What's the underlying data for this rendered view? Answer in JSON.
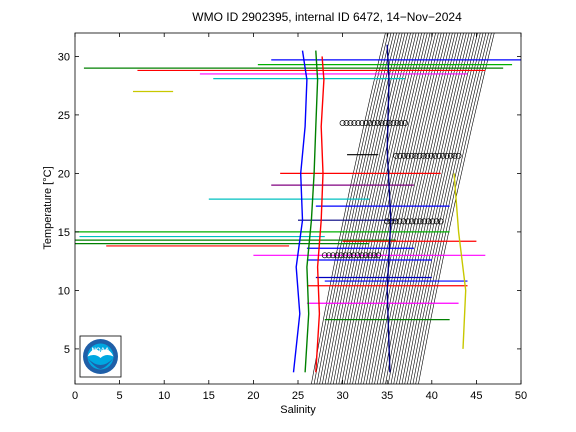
{
  "chart_data": {
    "type": "line",
    "title": "WMO ID 2902395, internal ID 6472, 14−Nov−2024",
    "xlabel": "Salinity",
    "ylabel": "Temperature [°C]",
    "xlim": [
      0,
      50
    ],
    "ylim": [
      2,
      32
    ],
    "xticks": [
      0,
      5,
      10,
      15,
      20,
      25,
      30,
      35,
      40,
      45,
      50
    ],
    "yticks": [
      5,
      10,
      15,
      20,
      25,
      30
    ],
    "grid": false,
    "legend": "none",
    "series": [
      {
        "role": "main-cluster-a",
        "color": "#0000ff",
        "points": [
          [
            24.5,
            3.0
          ],
          [
            25.2,
            8.0
          ],
          [
            24.8,
            12.0
          ],
          [
            25.5,
            16.0
          ],
          [
            25.3,
            20.0
          ],
          [
            25.8,
            24.0
          ],
          [
            26.0,
            28.0
          ],
          [
            25.5,
            30.5
          ]
        ]
      },
      {
        "role": "main-cluster-b",
        "color": "#008000",
        "points": [
          [
            25.8,
            3.0
          ],
          [
            26.2,
            8.0
          ],
          [
            26.0,
            12.0
          ],
          [
            26.5,
            16.0
          ],
          [
            26.8,
            20.0
          ],
          [
            27.0,
            24.0
          ],
          [
            27.2,
            28.0
          ],
          [
            27.0,
            30.5
          ]
        ]
      },
      {
        "role": "main-cluster-c",
        "color": "#ff0000",
        "points": [
          [
            27.0,
            3.0
          ],
          [
            27.4,
            8.0
          ],
          [
            27.2,
            12.0
          ],
          [
            27.6,
            16.0
          ],
          [
            27.8,
            20.0
          ],
          [
            27.6,
            24.0
          ],
          [
            27.9,
            28.0
          ],
          [
            27.7,
            30.0
          ]
        ]
      },
      {
        "role": "vertical-profile-35",
        "color": "#000080",
        "points": [
          [
            35.3,
            3.0
          ],
          [
            35.0,
            10.0
          ],
          [
            35.4,
            16.0
          ],
          [
            35.0,
            22.0
          ],
          [
            35.2,
            28.0
          ],
          [
            35.0,
            31.0
          ]
        ]
      },
      {
        "role": "far-right-profile",
        "color": "#c8c800",
        "points": [
          [
            43.5,
            5.0
          ],
          [
            43.8,
            10.0
          ],
          [
            43.0,
            15.0
          ],
          [
            42.5,
            20.0
          ]
        ]
      }
    ],
    "horizontal_spikes": [
      {
        "y": 29.7,
        "x0": 22.0,
        "x1": 50.0,
        "color": "#0000ff"
      },
      {
        "y": 29.3,
        "x0": 20.5,
        "x1": 49.0,
        "color": "#00b000"
      },
      {
        "y": 29.0,
        "x0": 1.0,
        "x1": 48.0,
        "color": "#008000"
      },
      {
        "y": 28.8,
        "x0": 7.0,
        "x1": 46.0,
        "color": "#ff0000"
      },
      {
        "y": 28.5,
        "x0": 14.0,
        "x1": 44.0,
        "color": "#ff00ff"
      },
      {
        "y": 28.1,
        "x0": 15.5,
        "x1": 37.0,
        "color": "#00c0c0"
      },
      {
        "y": 27.0,
        "x0": 6.5,
        "x1": 11.0,
        "color": "#c8c800"
      },
      {
        "y": 21.6,
        "x0": 30.5,
        "x1": 34.0,
        "color": "#000000"
      },
      {
        "y": 20.0,
        "x0": 23.0,
        "x1": 41.0,
        "color": "#ff0000"
      },
      {
        "y": 19.0,
        "x0": 22.0,
        "x1": 38.0,
        "color": "#800080"
      },
      {
        "y": 17.8,
        "x0": 15.0,
        "x1": 33.0,
        "color": "#00c0c0"
      },
      {
        "y": 17.2,
        "x0": 27.0,
        "x1": 42.0,
        "color": "#0000ff"
      },
      {
        "y": 16.0,
        "x0": 25.0,
        "x1": 36.0,
        "color": "#000080"
      },
      {
        "y": 15.0,
        "x0": 0.0,
        "x1": 42.0,
        "color": "#00b000"
      },
      {
        "y": 14.6,
        "x0": 0.5,
        "x1": 28.0,
        "color": "#00c0c0"
      },
      {
        "y": 14.3,
        "x0": 0.0,
        "x1": 36.0,
        "color": "#008000"
      },
      {
        "y": 14.0,
        "x0": 0.0,
        "x1": 33.0,
        "color": "#008000"
      },
      {
        "y": 14.2,
        "x0": 30.0,
        "x1": 45.0,
        "color": "#ff0000"
      },
      {
        "y": 13.8,
        "x0": 3.5,
        "x1": 24.0,
        "color": "#ff0000"
      },
      {
        "y": 13.6,
        "x0": 26.0,
        "x1": 38.0,
        "color": "#0000ff"
      },
      {
        "y": 13.0,
        "x0": 20.0,
        "x1": 46.0,
        "color": "#ff00ff"
      },
      {
        "y": 12.6,
        "x0": 26.0,
        "x1": 40.0,
        "color": "#0000ff"
      },
      {
        "y": 11.1,
        "x0": 27.0,
        "x1": 40.0,
        "color": "#0000c0"
      },
      {
        "y": 10.8,
        "x0": 28.0,
        "x1": 44.0,
        "color": "#0000ff"
      },
      {
        "y": 10.4,
        "x0": 26.0,
        "x1": 44.0,
        "color": "#ff0000"
      },
      {
        "y": 8.9,
        "x0": 26.0,
        "x1": 43.0,
        "color": "#ff00ff"
      },
      {
        "y": 7.5,
        "x0": 28.0,
        "x1": 42.0,
        "color": "#008000"
      }
    ],
    "circle_markers": [
      {
        "y": 24.3,
        "x0": 30.0,
        "x1": 37.0
      },
      {
        "y": 21.5,
        "x0": 36.0,
        "x1": 43.0
      },
      {
        "y": 15.9,
        "x0": 35.0,
        "x1": 41.0
      },
      {
        "y": 13.0,
        "x0": 28.0,
        "x1": 34.0
      }
    ],
    "density_contours": {
      "color": "#000000",
      "count": 40,
      "bottom": {
        "y": 2,
        "x0": 26.5,
        "x1": 38.5
      },
      "top": {
        "y": 32,
        "x0": 34.8,
        "x1": 47.0
      }
    }
  },
  "logo": {
    "text": "NOAA",
    "outer_color": "#1f5fa8",
    "inner_color": "#00a7e1",
    "bird_color": "#ffffff"
  }
}
